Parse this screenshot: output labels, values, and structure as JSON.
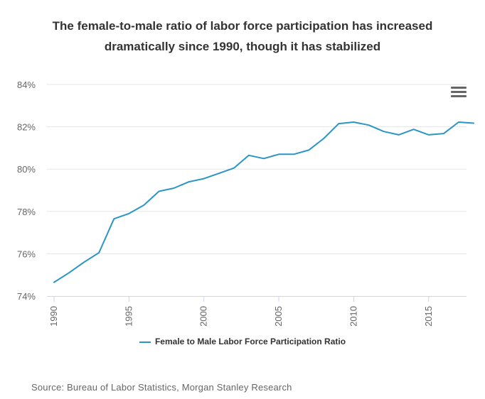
{
  "chart_data": {
    "type": "line",
    "title_lines": [
      "The female-to-male ratio of labor force participation has increased",
      "dramatically since 1990, though it has stabilized"
    ],
    "xlabel": "",
    "ylabel": "",
    "ylim": [
      74,
      84
    ],
    "y_ticks": [
      74,
      76,
      78,
      80,
      82,
      84
    ],
    "y_tick_labels": [
      "74%",
      "76%",
      "78%",
      "80%",
      "82%",
      "84%"
    ],
    "xlim": [
      1990,
      2018
    ],
    "x_ticks": [
      1990,
      1995,
      2000,
      2005,
      2010,
      2015
    ],
    "x_tick_labels": [
      "1990",
      "1995",
      "2000",
      "2005",
      "2010",
      "2015"
    ],
    "grid": true,
    "legend_position": "bottom",
    "series": [
      {
        "name": "Female to Male Labor Force Participation Ratio",
        "color": "#2b95c5",
        "x": [
          1990,
          1991,
          1992,
          1993,
          1994,
          1995,
          1996,
          1997,
          1998,
          1999,
          2000,
          2001,
          2002,
          2003,
          2004,
          2005,
          2006,
          2007,
          2008,
          2009,
          2010,
          2011,
          2012,
          2013,
          2014,
          2015,
          2016,
          2017,
          2018
        ],
        "values": [
          74.65,
          75.1,
          75.6,
          76.05,
          77.65,
          77.9,
          78.3,
          78.95,
          79.1,
          79.4,
          79.55,
          79.8,
          80.05,
          80.65,
          80.5,
          80.7,
          80.7,
          80.9,
          81.45,
          82.15,
          82.22,
          82.08,
          81.78,
          81.62,
          81.88,
          81.62,
          81.68,
          82.22,
          82.17
        ]
      }
    ]
  },
  "menu": {
    "icon": "hamburger-menu-icon"
  },
  "source": "Source: Bureau of Labor Statistics, Morgan Stanley Research"
}
